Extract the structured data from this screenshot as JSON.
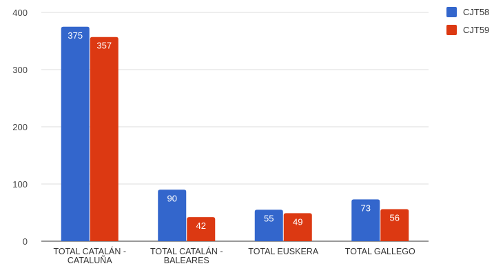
{
  "chart_data": {
    "type": "bar",
    "categories": [
      [
        "TOTAL CATALÁN -",
        "CATALUÑA"
      ],
      [
        "TOTAL CATALÁN -",
        "BALEARES"
      ],
      [
        "TOTAL EUSKERA"
      ],
      [
        "TOTAL GALLEGO"
      ]
    ],
    "series": [
      {
        "name": "CJT58",
        "color": "#3366cc",
        "values": [
          375,
          90,
          55,
          73
        ]
      },
      {
        "name": "CJT59",
        "color": "#dc3912",
        "values": [
          357,
          42,
          49,
          56
        ]
      }
    ],
    "ylim": [
      0,
      400
    ],
    "yticks": [
      0,
      100,
      200,
      300,
      400
    ],
    "grid": true,
    "legend": "top-right",
    "colors": {
      "grid": "#dddddd",
      "axis": "#333333"
    }
  }
}
